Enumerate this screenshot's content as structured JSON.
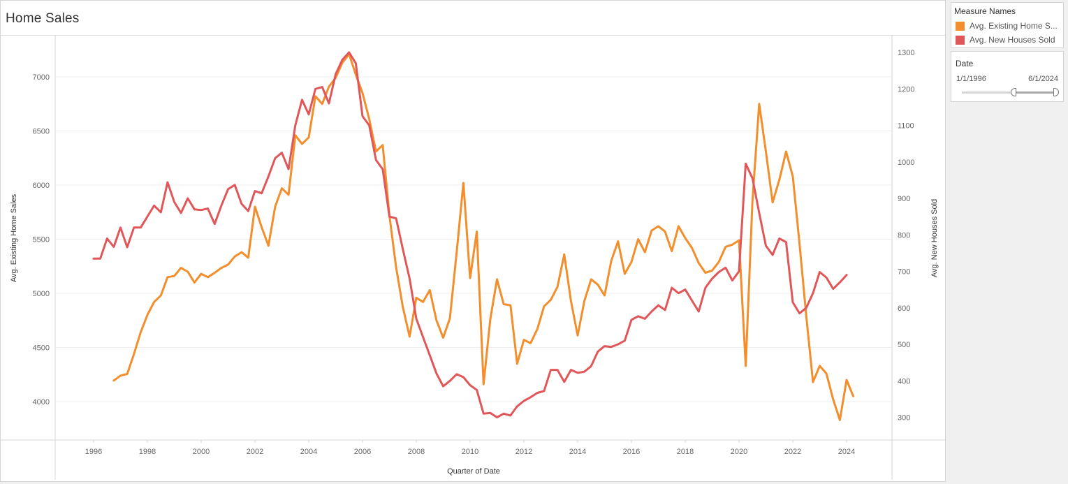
{
  "title": "Home Sales",
  "legend": {
    "header": "Measure Names",
    "items": [
      {
        "label": "Avg. Existing Home S...",
        "color": "#f28e2b"
      },
      {
        "label": "Avg. New Houses Sold",
        "color": "#e15759"
      }
    ]
  },
  "date_filter": {
    "header": "Date",
    "start": "1/1/1996",
    "end": "6/1/2024"
  },
  "chart_data": {
    "type": "line",
    "xlabel": "Quarter of Date",
    "ylabel_left": "Avg. Existing Home Sales",
    "ylabel_right": "Avg. New Houses Sold",
    "x_ticks": [
      "1996",
      "1998",
      "2000",
      "2002",
      "2004",
      "2006",
      "2008",
      "2010",
      "2012",
      "2014",
      "2016",
      "2018",
      "2020",
      "2022",
      "2024"
    ],
    "y_left_ticks": [
      "4000",
      "4500",
      "5000",
      "5500",
      "6000",
      "6500",
      "7000"
    ],
    "y_right_ticks": [
      "300",
      "400",
      "500",
      "600",
      "700",
      "800",
      "900",
      "1000",
      "1100",
      "1200",
      "1300"
    ],
    "grid": true,
    "series": [
      {
        "name": "Avg. Existing Home Sales",
        "axis": "left",
        "color": "#f28e2b",
        "points": [
          [
            1996.75,
            4195
          ],
          [
            1997.0,
            4240
          ],
          [
            1997.25,
            4255
          ],
          [
            1997.5,
            4440
          ],
          [
            1997.75,
            4640
          ],
          [
            1998.0,
            4800
          ],
          [
            1998.25,
            4920
          ],
          [
            1998.5,
            4980
          ],
          [
            1998.75,
            5150
          ],
          [
            1999.0,
            5160
          ],
          [
            1999.25,
            5235
          ],
          [
            1999.5,
            5200
          ],
          [
            1999.75,
            5100
          ],
          [
            2000.0,
            5180
          ],
          [
            2000.25,
            5150
          ],
          [
            2000.5,
            5190
          ],
          [
            2000.75,
            5235
          ],
          [
            2001.0,
            5265
          ],
          [
            2001.25,
            5340
          ],
          [
            2001.5,
            5380
          ],
          [
            2001.75,
            5330
          ],
          [
            2002.0,
            5800
          ],
          [
            2002.25,
            5610
          ],
          [
            2002.5,
            5440
          ],
          [
            2002.75,
            5800
          ],
          [
            2003.0,
            5970
          ],
          [
            2003.25,
            5910
          ],
          [
            2003.5,
            6460
          ],
          [
            2003.75,
            6380
          ],
          [
            2004.0,
            6440
          ],
          [
            2004.25,
            6820
          ],
          [
            2004.5,
            6750
          ],
          [
            2004.75,
            6910
          ],
          [
            2005.0,
            6990
          ],
          [
            2005.25,
            7130
          ],
          [
            2005.5,
            7210
          ],
          [
            2005.75,
            7020
          ],
          [
            2006.0,
            6850
          ],
          [
            2006.25,
            6610
          ],
          [
            2006.5,
            6310
          ],
          [
            2006.75,
            6370
          ],
          [
            2007.0,
            5720
          ],
          [
            2007.25,
            5240
          ],
          [
            2007.5,
            4870
          ],
          [
            2007.75,
            4600
          ],
          [
            2008.0,
            4960
          ],
          [
            2008.25,
            4920
          ],
          [
            2008.5,
            5030
          ],
          [
            2008.75,
            4750
          ],
          [
            2009.0,
            4590
          ],
          [
            2009.25,
            4770
          ],
          [
            2009.5,
            5380
          ],
          [
            2009.75,
            6020
          ],
          [
            2010.0,
            5140
          ],
          [
            2010.25,
            5570
          ],
          [
            2010.5,
            4160
          ],
          [
            2010.75,
            4760
          ],
          [
            2011.0,
            5130
          ],
          [
            2011.25,
            4900
          ],
          [
            2011.5,
            4890
          ],
          [
            2011.75,
            4350
          ],
          [
            2012.0,
            4570
          ],
          [
            2012.25,
            4540
          ],
          [
            2012.5,
            4670
          ],
          [
            2012.75,
            4880
          ],
          [
            2013.0,
            4940
          ],
          [
            2013.25,
            5060
          ],
          [
            2013.5,
            5360
          ],
          [
            2013.75,
            4930
          ],
          [
            2014.0,
            4610
          ],
          [
            2014.25,
            4930
          ],
          [
            2014.5,
            5130
          ],
          [
            2014.75,
            5080
          ],
          [
            2015.0,
            4980
          ],
          [
            2015.25,
            5300
          ],
          [
            2015.5,
            5480
          ],
          [
            2015.75,
            5180
          ],
          [
            2016.0,
            5290
          ],
          [
            2016.25,
            5500
          ],
          [
            2016.5,
            5380
          ],
          [
            2016.75,
            5580
          ],
          [
            2017.0,
            5620
          ],
          [
            2017.25,
            5570
          ],
          [
            2017.5,
            5390
          ],
          [
            2017.75,
            5620
          ],
          [
            2018.0,
            5510
          ],
          [
            2018.25,
            5420
          ],
          [
            2018.5,
            5280
          ],
          [
            2018.75,
            5190
          ],
          [
            2019.0,
            5210
          ],
          [
            2019.25,
            5290
          ],
          [
            2019.5,
            5430
          ],
          [
            2019.75,
            5450
          ],
          [
            2020.0,
            5490
          ],
          [
            2020.25,
            4330
          ],
          [
            2020.5,
            5860
          ],
          [
            2020.75,
            6750
          ],
          [
            2021.0,
            6310
          ],
          [
            2021.25,
            5840
          ],
          [
            2021.5,
            6050
          ],
          [
            2021.75,
            6310
          ],
          [
            2022.0,
            6080
          ],
          [
            2022.25,
            5460
          ],
          [
            2022.5,
            4790
          ],
          [
            2022.75,
            4180
          ],
          [
            2023.0,
            4330
          ],
          [
            2023.25,
            4260
          ],
          [
            2023.5,
            4020
          ],
          [
            2023.75,
            3830
          ],
          [
            2024.0,
            4200
          ],
          [
            2024.25,
            4050
          ]
        ]
      },
      {
        "name": "Avg. New Houses Sold",
        "axis": "right",
        "color": "#e15759",
        "points": [
          [
            1996.0,
            735
          ],
          [
            1996.25,
            735
          ],
          [
            1996.5,
            790
          ],
          [
            1996.75,
            767
          ],
          [
            1997.0,
            820
          ],
          [
            1997.25,
            766
          ],
          [
            1997.5,
            820
          ],
          [
            1997.75,
            820
          ],
          [
            1998.0,
            850
          ],
          [
            1998.25,
            880
          ],
          [
            1998.5,
            862
          ],
          [
            1998.75,
            944
          ],
          [
            1999.0,
            890
          ],
          [
            1999.25,
            860
          ],
          [
            1999.5,
            900
          ],
          [
            1999.75,
            870
          ],
          [
            2000.0,
            868
          ],
          [
            2000.25,
            872
          ],
          [
            2000.5,
            830
          ],
          [
            2000.75,
            880
          ],
          [
            2001.0,
            925
          ],
          [
            2001.25,
            937
          ],
          [
            2001.5,
            885
          ],
          [
            2001.75,
            865
          ],
          [
            2002.0,
            920
          ],
          [
            2002.25,
            914
          ],
          [
            2002.5,
            960
          ],
          [
            2002.75,
            1010
          ],
          [
            2003.0,
            1025
          ],
          [
            2003.25,
            980
          ],
          [
            2003.5,
            1100
          ],
          [
            2003.75,
            1170
          ],
          [
            2004.0,
            1130
          ],
          [
            2004.25,
            1200
          ],
          [
            2004.5,
            1205
          ],
          [
            2004.75,
            1160
          ],
          [
            2005.0,
            1240
          ],
          [
            2005.25,
            1280
          ],
          [
            2005.5,
            1300
          ],
          [
            2005.75,
            1270
          ],
          [
            2006.0,
            1125
          ],
          [
            2006.25,
            1100
          ],
          [
            2006.5,
            1005
          ],
          [
            2006.75,
            980
          ],
          [
            2007.0,
            850
          ],
          [
            2007.25,
            845
          ],
          [
            2007.5,
            760
          ],
          [
            2007.75,
            680
          ],
          [
            2008.0,
            570
          ],
          [
            2008.25,
            520
          ],
          [
            2008.5,
            470
          ],
          [
            2008.75,
            420
          ],
          [
            2009.0,
            385
          ],
          [
            2009.25,
            400
          ],
          [
            2009.5,
            418
          ],
          [
            2009.75,
            410
          ],
          [
            2010.0,
            388
          ],
          [
            2010.25,
            375
          ],
          [
            2010.5,
            310
          ],
          [
            2010.75,
            312
          ],
          [
            2011.0,
            300
          ],
          [
            2011.25,
            310
          ],
          [
            2011.5,
            305
          ],
          [
            2011.75,
            330
          ],
          [
            2012.0,
            345
          ],
          [
            2012.25,
            355
          ],
          [
            2012.5,
            367
          ],
          [
            2012.75,
            372
          ],
          [
            2013.0,
            430
          ],
          [
            2013.25,
            430
          ],
          [
            2013.5,
            397
          ],
          [
            2013.75,
            430
          ],
          [
            2014.0,
            422
          ],
          [
            2014.25,
            425
          ],
          [
            2014.5,
            440
          ],
          [
            2014.75,
            480
          ],
          [
            2015.0,
            495
          ],
          [
            2015.25,
            493
          ],
          [
            2015.5,
            500
          ],
          [
            2015.75,
            510
          ],
          [
            2016.0,
            567
          ],
          [
            2016.25,
            577
          ],
          [
            2016.5,
            570
          ],
          [
            2016.75,
            590
          ],
          [
            2017.0,
            607
          ],
          [
            2017.25,
            594
          ],
          [
            2017.5,
            655
          ],
          [
            2017.75,
            640
          ],
          [
            2018.0,
            650
          ],
          [
            2018.25,
            620
          ],
          [
            2018.5,
            590
          ],
          [
            2018.75,
            655
          ],
          [
            2019.0,
            680
          ],
          [
            2019.25,
            698
          ],
          [
            2019.5,
            710
          ],
          [
            2019.75,
            675
          ],
          [
            2020.0,
            700
          ],
          [
            2020.25,
            995
          ],
          [
            2020.5,
            955
          ],
          [
            2020.75,
            860
          ],
          [
            2021.0,
            770
          ],
          [
            2021.25,
            745
          ],
          [
            2021.5,
            790
          ],
          [
            2021.75,
            780
          ],
          [
            2022.0,
            615
          ],
          [
            2022.25,
            585
          ],
          [
            2022.5,
            600
          ],
          [
            2022.75,
            640
          ],
          [
            2023.0,
            698
          ],
          [
            2023.25,
            683
          ],
          [
            2023.5,
            652
          ],
          [
            2023.75,
            670
          ],
          [
            2024.0,
            690
          ]
        ]
      }
    ]
  }
}
